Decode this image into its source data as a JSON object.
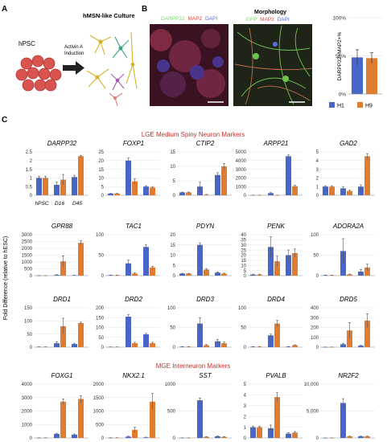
{
  "panels": {
    "a": "A",
    "b": "B",
    "c": "C"
  },
  "panel_a": {
    "cells_label": "hPSC",
    "arrow_label_1": "Activin A",
    "arrow_label_2": "Induction",
    "culture_label": "hMSN-like Culture"
  },
  "panel_b": {
    "img1_stain": [
      {
        "text": "DARPP32",
        "color": "#7cd66b"
      },
      {
        "text": "MAP2",
        "color": "#e0473b"
      },
      {
        "text": "DAPI",
        "color": "#5a6dd8"
      }
    ],
    "morphology": "Morphology",
    "img2_stain": [
      {
        "text": "GFP",
        "color": "#7cd66b"
      },
      {
        "text": "MAP2",
        "color": "#e0473b"
      },
      {
        "text": "DAPI",
        "color": "#5a6dd8"
      }
    ],
    "ylabel": "DARPP32+MAP2+%",
    "ticks": [
      "0%",
      "50%",
      "100%"
    ],
    "legend": [
      "H1",
      "H9"
    ]
  },
  "colors": {
    "h1": "#4766c8",
    "h9": "#e07b32",
    "red_title": "#c9302c"
  },
  "section_titles": {
    "lge": "LGE Medium Spiny Neuron Markers",
    "mge": "MGE Interneuron Markers"
  },
  "yaxis_label": "Fold Difference (relative to hESC)",
  "x_categories": [
    "hPSC",
    "D16",
    "D45"
  ],
  "chart_data": [
    {
      "type": "bar",
      "gene": "DARPP32",
      "ymax": 2.5,
      "ticks": [
        "0",
        "0.5",
        "1",
        "1.5",
        "2",
        "2.5"
      ],
      "tick_values": [
        0,
        0.5,
        1,
        1.5,
        2,
        2.5
      ],
      "series": [
        {
          "name": "H1",
          "values": [
            1.0,
            0.6,
            1.05
          ]
        },
        {
          "name": "H9",
          "values": [
            1.0,
            0.9,
            2.25
          ]
        }
      ],
      "errors": [
        [
          0.1,
          0.15,
          0.1
        ],
        [
          0.1,
          0.3,
          0.05
        ]
      ]
    },
    {
      "type": "bar",
      "gene": "FOXP1",
      "ymax": 25,
      "ticks": [
        "0",
        "5",
        "10",
        "15",
        "20",
        "25"
      ],
      "tick_values": [
        0,
        5,
        10,
        15,
        20,
        25
      ],
      "series": [
        {
          "name": "H1",
          "values": [
            1,
            20,
            5
          ]
        },
        {
          "name": "H9",
          "values": [
            1,
            8,
            4.5
          ]
        }
      ],
      "errors": [
        [
          0.1,
          1.5,
          0.5
        ],
        [
          0.1,
          1.5,
          0.5
        ]
      ]
    },
    {
      "type": "bar",
      "gene": "CTIP2",
      "ymax": 15,
      "ticks": [
        "0",
        "5",
        "10",
        "15"
      ],
      "tick_values": [
        0,
        5,
        10,
        15
      ],
      "series": [
        {
          "name": "H1",
          "values": [
            1,
            3,
            7
          ]
        },
        {
          "name": "H9",
          "values": [
            1,
            0.2,
            10
          ]
        }
      ],
      "errors": [
        [
          0.1,
          1.5,
          0.8
        ],
        [
          0.1,
          0.1,
          1
        ]
      ]
    },
    {
      "type": "bar",
      "gene": "ARPP21",
      "ymax": 5000,
      "ticks": [
        "0",
        "1000",
        "2000",
        "3000",
        "4000",
        "5000"
      ],
      "tick_values": [
        0,
        1000,
        2000,
        3000,
        4000,
        5000
      ],
      "series": [
        {
          "name": "H1",
          "values": [
            10,
            250,
            4500
          ]
        },
        {
          "name": "H9",
          "values": [
            10,
            10,
            1050
          ]
        }
      ],
      "errors": [
        [
          5,
          60,
          150
        ],
        [
          5,
          5,
          100
        ]
      ]
    },
    {
      "type": "bar",
      "gene": "GAD2",
      "ymax": 5,
      "ticks": [
        "0",
        "1",
        "2",
        "3",
        "4",
        "5"
      ],
      "tick_values": [
        0,
        1,
        2,
        3,
        4,
        5
      ],
      "series": [
        {
          "name": "H1",
          "values": [
            1,
            0.8,
            1
          ]
        },
        {
          "name": "H9",
          "values": [
            1,
            0.5,
            4.5
          ]
        }
      ],
      "errors": [
        [
          0.1,
          0.2,
          0.2
        ],
        [
          0.1,
          0.1,
          0.3
        ]
      ]
    },
    {
      "type": "bar",
      "gene": "GPR88",
      "ymax": 3000,
      "ticks": [
        "0",
        "500",
        "1000",
        "1500",
        "2000",
        "2500",
        "3000"
      ],
      "tick_values": [
        0,
        500,
        1000,
        1500,
        2000,
        2500,
        3000
      ],
      "series": [
        {
          "name": "H1",
          "values": [
            5,
            50,
            20
          ]
        },
        {
          "name": "H9",
          "values": [
            5,
            1050,
            2400
          ]
        }
      ],
      "errors": [
        [
          5,
          20,
          10
        ],
        [
          5,
          400,
          150
        ]
      ]
    },
    {
      "type": "bar",
      "gene": "TAC1",
      "ymax": 100,
      "ticks": [
        "0",
        "50",
        "100"
      ],
      "tick_values": [
        0,
        50,
        100
      ],
      "series": [
        {
          "name": "H1",
          "values": [
            1,
            30,
            70
          ]
        },
        {
          "name": "H9",
          "values": [
            1,
            5,
            20
          ]
        }
      ],
      "errors": [
        [
          0.5,
          8,
          5
        ],
        [
          0.5,
          2,
          3
        ]
      ]
    },
    {
      "type": "bar",
      "gene": "PDYN",
      "ymax": 20,
      "ticks": [
        "0",
        "5",
        "10",
        "15",
        "20"
      ],
      "tick_values": [
        0,
        5,
        10,
        15,
        20
      ],
      "series": [
        {
          "name": "H1",
          "values": [
            1,
            15,
            1.5
          ]
        },
        {
          "name": "H9",
          "values": [
            1,
            3,
            1
          ]
        }
      ],
      "errors": [
        [
          0.1,
          1,
          0.3
        ],
        [
          0.1,
          0.5,
          0.2
        ]
      ]
    },
    {
      "type": "bar",
      "gene": "PENK",
      "ymax": 40,
      "ticks": [
        "0",
        "5",
        "10",
        "15",
        "20",
        "25",
        "30",
        "35",
        "40"
      ],
      "tick_values": [
        0,
        5,
        10,
        15,
        20,
        25,
        30,
        35,
        40
      ],
      "series": [
        {
          "name": "H1",
          "values": [
            1,
            28,
            20
          ]
        },
        {
          "name": "H9",
          "values": [
            1,
            14,
            22
          ]
        }
      ],
      "errors": [
        [
          0.5,
          10,
          5
        ],
        [
          0.5,
          5,
          4
        ]
      ]
    },
    {
      "type": "bar",
      "gene": "ADORA2A",
      "ymax": 100,
      "ticks": [
        "0",
        "50",
        "100"
      ],
      "tick_values": [
        0,
        50,
        100
      ],
      "series": [
        {
          "name": "H1",
          "values": [
            1,
            60,
            10
          ]
        },
        {
          "name": "H9",
          "values": [
            1,
            3,
            20
          ]
        }
      ],
      "errors": [
        [
          0.5,
          30,
          5
        ],
        [
          0.5,
          1,
          8
        ]
      ]
    },
    {
      "type": "bar",
      "gene": "DRD1",
      "ymax": 150,
      "ticks": [
        "0",
        "50",
        "100",
        "150"
      ],
      "tick_values": [
        0,
        50,
        100,
        150
      ],
      "series": [
        {
          "name": "H1",
          "values": [
            1,
            15,
            12
          ]
        },
        {
          "name": "H9",
          "values": [
            1,
            80,
            92
          ]
        }
      ],
      "errors": [
        [
          0.5,
          5,
          3
        ],
        [
          0.5,
          30,
          3
        ]
      ]
    },
    {
      "type": "bar",
      "gene": "DRD2",
      "ymax": 200,
      "ticks": [
        "0",
        "50",
        "100",
        "150",
        "200"
      ],
      "tick_values": [
        0,
        50,
        100,
        150,
        200
      ],
      "series": [
        {
          "name": "H1",
          "values": [
            1,
            155,
            65
          ]
        },
        {
          "name": "H9",
          "values": [
            1,
            20,
            20
          ]
        }
      ],
      "errors": [
        [
          0.5,
          10,
          5
        ],
        [
          0.5,
          5,
          5
        ]
      ]
    },
    {
      "type": "bar",
      "gene": "DRD3",
      "ymax": 100,
      "ticks": [
        "0",
        "50",
        "100"
      ],
      "tick_values": [
        0,
        50,
        100
      ],
      "series": [
        {
          "name": "H1",
          "values": [
            1,
            60,
            15
          ]
        },
        {
          "name": "H9",
          "values": [
            1,
            5,
            10
          ]
        }
      ],
      "errors": [
        [
          0.5,
          15,
          5
        ],
        [
          0.5,
          2,
          3
        ]
      ]
    },
    {
      "type": "bar",
      "gene": "DRD4",
      "ymax": 100,
      "ticks": [
        "0",
        "50",
        "100"
      ],
      "tick_values": [
        0,
        50,
        100
      ],
      "series": [
        {
          "name": "H1",
          "values": [
            1,
            30,
            1
          ]
        },
        {
          "name": "H9",
          "values": [
            1,
            60,
            5
          ]
        }
      ],
      "errors": [
        [
          0.5,
          3,
          0.5
        ],
        [
          0.5,
          8,
          1
        ]
      ]
    },
    {
      "type": "bar",
      "gene": "DRD5",
      "ymax": 400,
      "ticks": [
        "0",
        "100",
        "200",
        "300",
        "400"
      ],
      "tick_values": [
        0,
        100,
        200,
        300,
        400
      ],
      "series": [
        {
          "name": "H1",
          "values": [
            1,
            30,
            15
          ]
        },
        {
          "name": "H9",
          "values": [
            1,
            170,
            270
          ]
        }
      ],
      "errors": [
        [
          0.5,
          10,
          5
        ],
        [
          0.5,
          80,
          70
        ]
      ]
    },
    {
      "type": "bar",
      "gene": "FOXG1",
      "ymax": 4000,
      "ticks": [
        "0",
        "1000",
        "2000",
        "3000",
        "4000"
      ],
      "tick_values": [
        0,
        1000,
        2000,
        3000,
        4000
      ],
      "series": [
        {
          "name": "H1",
          "values": [
            10,
            300,
            250
          ]
        },
        {
          "name": "H9",
          "values": [
            10,
            2700,
            2900
          ]
        }
      ],
      "errors": [
        [
          5,
          50,
          50
        ],
        [
          5,
          200,
          250
        ]
      ]
    },
    {
      "type": "bar",
      "gene": "NKX2.1",
      "ymax": 2000,
      "ticks": [
        "0",
        "500",
        "1000",
        "1500",
        "2000"
      ],
      "tick_values": [
        0,
        500,
        1000,
        1500,
        2000
      ],
      "series": [
        {
          "name": "H1",
          "values": [
            5,
            50,
            20
          ]
        },
        {
          "name": "H9",
          "values": [
            5,
            300,
            1350
          ]
        }
      ],
      "errors": [
        [
          5,
          20,
          10
        ],
        [
          5,
          100,
          300
        ]
      ]
    },
    {
      "type": "bar",
      "gene": "SST",
      "ymax": 1000,
      "ticks": [
        "0",
        "500",
        "1000"
      ],
      "tick_values": [
        0,
        500,
        1000
      ],
      "series": [
        {
          "name": "H1",
          "values": [
            2,
            700,
            30
          ]
        },
        {
          "name": "H9",
          "values": [
            2,
            20,
            20
          ]
        }
      ],
      "errors": [
        [
          1,
          40,
          10
        ],
        [
          1,
          5,
          5
        ]
      ]
    },
    {
      "type": "bar",
      "gene": "PVALB",
      "ymax": 5,
      "ticks": [
        "0",
        "1",
        "2",
        "3",
        "4",
        "5"
      ],
      "tick_values": [
        0,
        1,
        2,
        3,
        4,
        5
      ],
      "series": [
        {
          "name": "H1",
          "values": [
            1,
            0.9,
            0.4
          ]
        },
        {
          "name": "H9",
          "values": [
            1,
            3.8,
            0.5
          ]
        }
      ],
      "errors": [
        [
          0.1,
          0.3,
          0.1
        ],
        [
          0.1,
          0.4,
          0.1
        ]
      ]
    },
    {
      "type": "bar",
      "gene": "NR2F2",
      "ymax": 10000,
      "ticks": [
        "0",
        "5,000",
        "10,000"
      ],
      "tick_values": [
        0,
        5000,
        10000
      ],
      "series": [
        {
          "name": "H1",
          "values": [
            10,
            6500,
            300
          ]
        },
        {
          "name": "H9",
          "values": [
            10,
            300,
            300
          ]
        }
      ],
      "errors": [
        [
          5,
          800,
          50
        ],
        [
          5,
          50,
          50
        ]
      ]
    }
  ]
}
